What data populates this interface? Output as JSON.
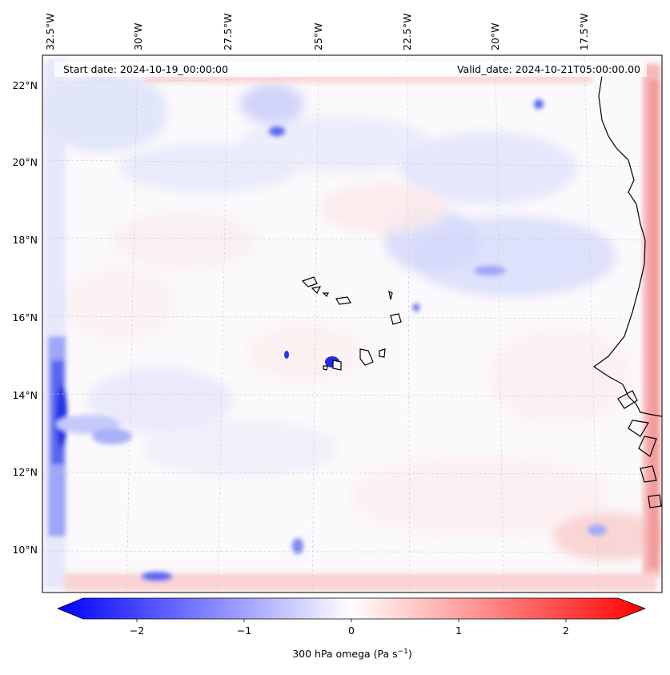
{
  "map": {
    "start_label": "Start date: 2024-10-19_00:00:00",
    "valid_label": "Valid_date: 2024-10-21T05:00:00.00",
    "lon_labels": [
      "32.5°W",
      "30°W",
      "27.5°W",
      "25°W",
      "22.5°W",
      "20°W",
      "17.5°W"
    ],
    "lat_labels": [
      "22°N",
      "20°N",
      "18°N",
      "16°N",
      "14°N",
      "12°N",
      "10°N"
    ]
  },
  "colorbar": {
    "ticks": [
      "−2",
      "−1",
      "0",
      "1",
      "2"
    ],
    "label_main": "300 hPa omega (Pa s",
    "label_sup": "−1",
    "label_end": ")"
  },
  "colors": {
    "negative": "#0000ff",
    "neutral": "#ffffff",
    "positive": "#ff0000",
    "coastline": "#000000"
  }
}
